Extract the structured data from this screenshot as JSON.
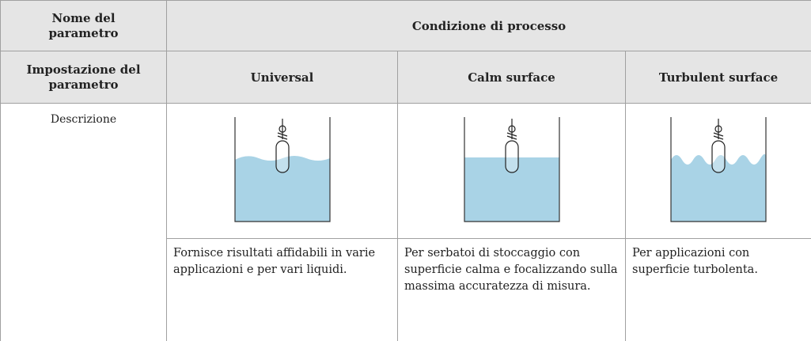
{
  "table": {
    "header_rows": [
      [
        "Nome del parametro",
        "Condizione di processo"
      ],
      [
        "Impostazione del parametro",
        "Universal",
        "Calm surface",
        "Turbulent surface"
      ]
    ],
    "rows": [
      [
        "Descrizione",
        "Fornisce risultati affidabili in varie applicazioni e per vari liquidi.",
        "Per serbatoi di stoccaggio con superficie calma e focalizzando sulla massima accuratezza di misura.",
        "Per applicazioni con superficie turbolenta."
      ]
    ]
  }
}
